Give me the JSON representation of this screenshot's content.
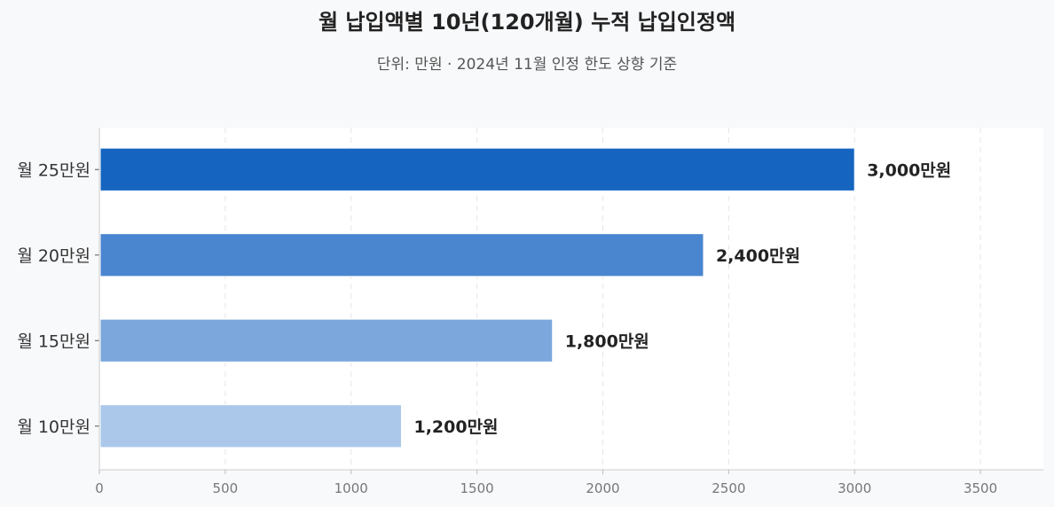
{
  "chart_data": {
    "type": "bar",
    "orientation": "horizontal",
    "title": "월 납입액별 10년(120개월) 누적 납입인정액",
    "subtitle": "단위: 만원 · 2024년 11월 인정 한도 상향 기준",
    "categories": [
      "월 25만원",
      "월 20만원",
      "월 15만원",
      "월 10만원"
    ],
    "values": [
      3000,
      2400,
      1800,
      1200
    ],
    "value_labels": [
      "3,000만원",
      "2,400만원",
      "1,800만원",
      "1,200만원"
    ],
    "bar_colors": [
      "#1565c0",
      "#4a86cf",
      "#7ba7dc",
      "#abc8ea"
    ],
    "xlim": [
      0,
      3750
    ],
    "xticks": [
      0,
      500,
      1000,
      1500,
      2000,
      2500,
      3000,
      3500
    ],
    "xlabel": "",
    "ylabel": "",
    "grid": "vertical-dashed"
  }
}
